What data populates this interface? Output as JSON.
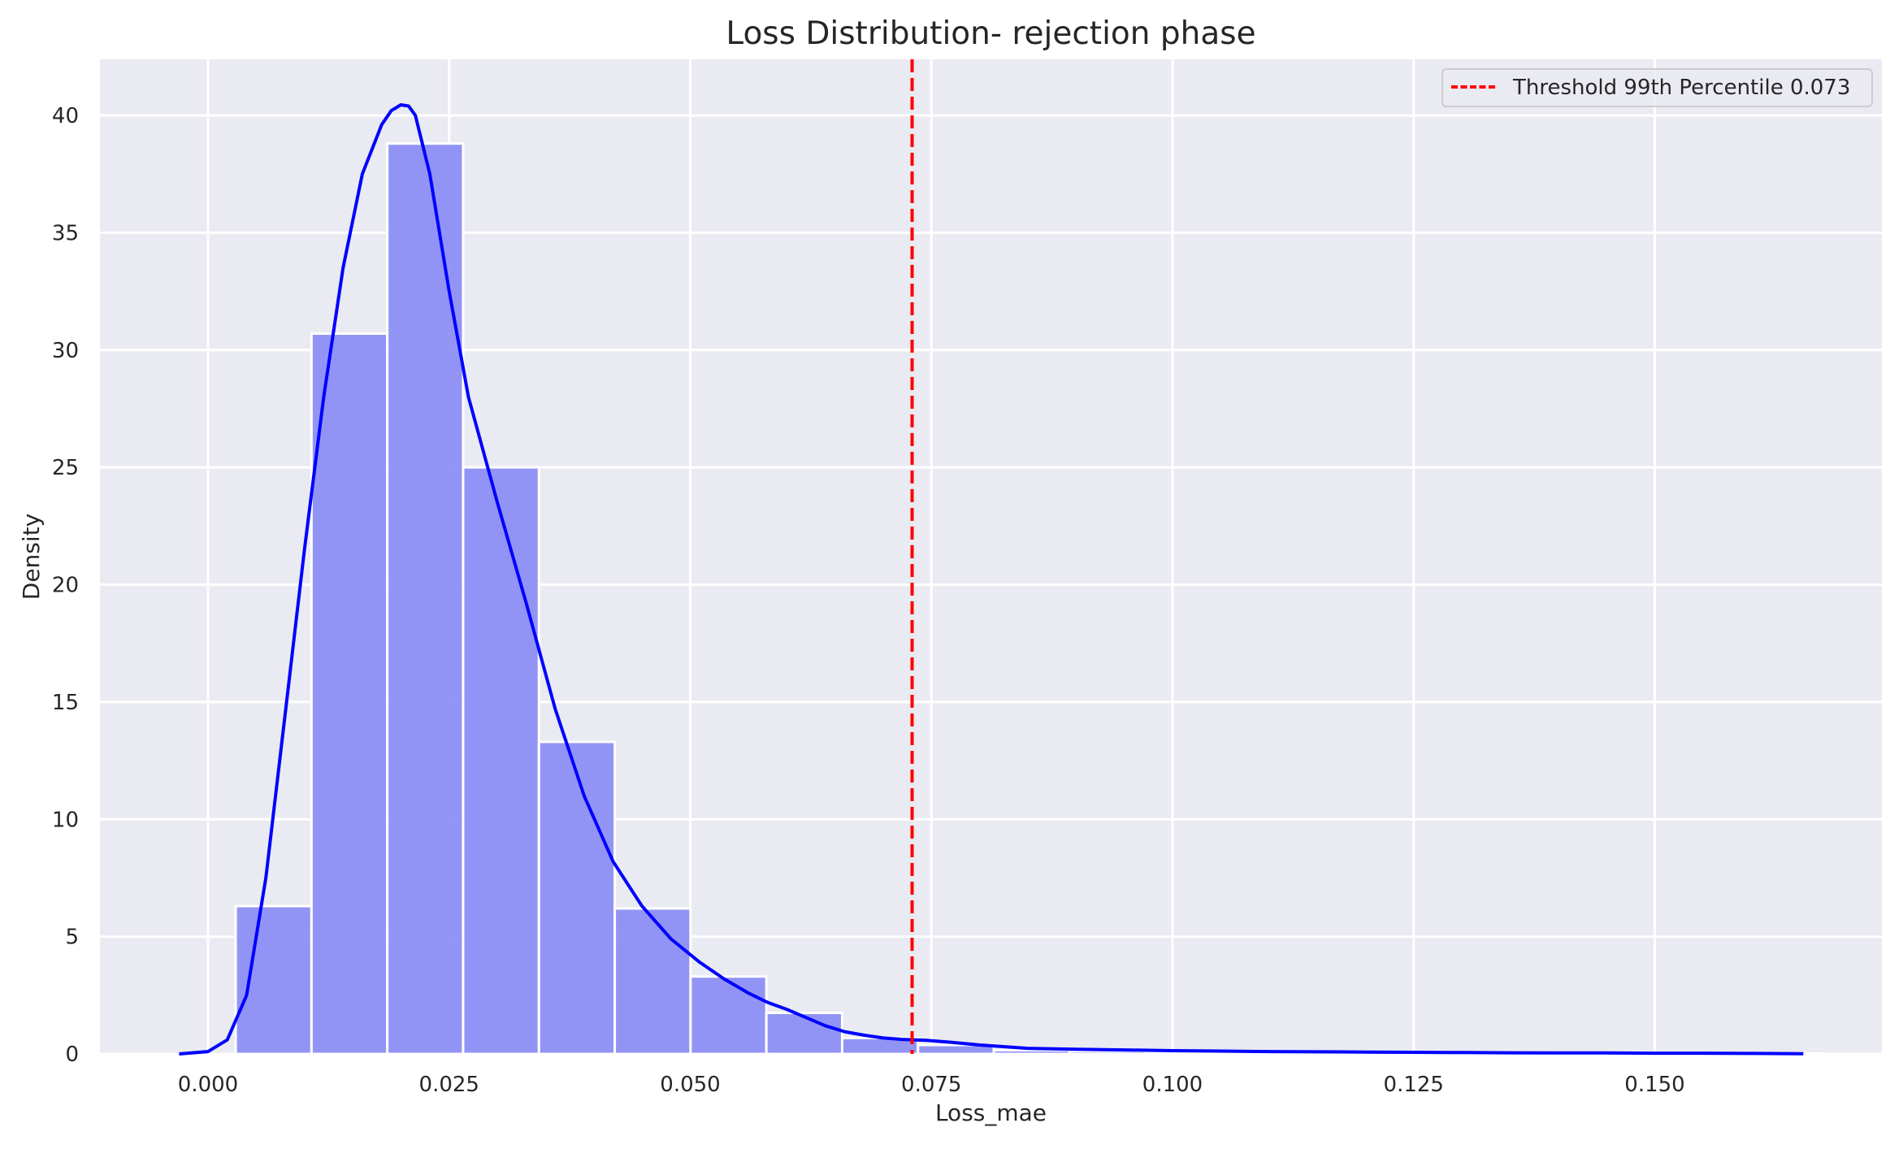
{
  "chart_data": {
    "type": "histogram+kde",
    "title": "Loss Distribution- rejection phase",
    "xlabel": "Loss_mae",
    "ylabel": "Density",
    "xlim": [
      -0.0084,
      0.1756
    ],
    "ylim": [
      0,
      42.4
    ],
    "xticks": [
      0.0,
      0.025,
      0.05,
      0.075,
      0.1,
      0.125,
      0.15
    ],
    "xtick_labels": [
      "0.000",
      "0.025",
      "0.050",
      "0.075",
      "0.100",
      "0.125",
      "0.150"
    ],
    "yticks": [
      0,
      5,
      10,
      15,
      20,
      25,
      30,
      35,
      40
    ],
    "ytick_labels": [
      "0",
      "5",
      "10",
      "15",
      "20",
      "25",
      "30",
      "35",
      "40"
    ],
    "grid": true,
    "background": "#EAEAF2",
    "histogram": {
      "bin_start": 0.00287,
      "bin_width": 0.00786,
      "color": "#8A8CF5",
      "edge_color": "#FFFFFF",
      "values": [
        6.3,
        30.7,
        38.8,
        25.0,
        13.3,
        6.2,
        3.3,
        1.75,
        0.68,
        0.38,
        0.16,
        0.12,
        0.09,
        0.07,
        0.06,
        0.05,
        0.05,
        0.04,
        0.03,
        0.03,
        0.02
      ]
    },
    "kde": {
      "color": "#0000FF",
      "x": [
        -0.003,
        0.0,
        0.002,
        0.004,
        0.006,
        0.008,
        0.01,
        0.012,
        0.014,
        0.016,
        0.018,
        0.019,
        0.02,
        0.0208,
        0.0215,
        0.023,
        0.025,
        0.027,
        0.03,
        0.033,
        0.036,
        0.039,
        0.042,
        0.045,
        0.048,
        0.051,
        0.0535,
        0.056,
        0.058,
        0.06,
        0.062,
        0.064,
        0.066,
        0.068,
        0.07,
        0.072,
        0.0745,
        0.077,
        0.08,
        0.085,
        0.09,
        0.095,
        0.1,
        0.105,
        0.11,
        0.115,
        0.12,
        0.125,
        0.13,
        0.135,
        0.14,
        0.145,
        0.15,
        0.155,
        0.16,
        0.1654
      ],
      "y": [
        0.0,
        0.1,
        0.6,
        2.5,
        7.5,
        14.5,
        21.5,
        28.0,
        33.5,
        37.5,
        39.6,
        40.2,
        40.45,
        40.4,
        40.0,
        37.5,
        32.5,
        28.0,
        23.5,
        19.2,
        14.7,
        11.0,
        8.2,
        6.3,
        4.9,
        3.9,
        3.2,
        2.6,
        2.2,
        1.9,
        1.55,
        1.2,
        0.95,
        0.8,
        0.68,
        0.62,
        0.58,
        0.5,
        0.38,
        0.24,
        0.2,
        0.17,
        0.14,
        0.12,
        0.1,
        0.09,
        0.08,
        0.07,
        0.06,
        0.05,
        0.04,
        0.04,
        0.03,
        0.03,
        0.02,
        0.01
      ]
    },
    "threshold": {
      "value": 0.073,
      "color": "#FF0000",
      "style": "dashed",
      "label": "Threshold 99th Percentile 0.073"
    },
    "legend_position": "upper right"
  },
  "legend": {
    "label": "Threshold 99th Percentile 0.073"
  }
}
